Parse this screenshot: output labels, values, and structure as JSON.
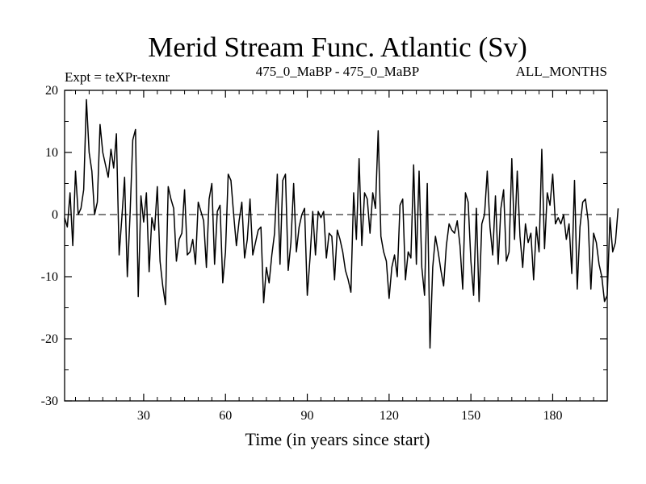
{
  "chart_data": {
    "type": "line",
    "title": "Merid Stream Func. Atlantic (Sv)",
    "subtitle_left": "Expt = teXPr-texnr",
    "subtitle_center": "475_0_MaBP - 475_0_MaBP",
    "subtitle_right": "ALL_MONTHS",
    "xlabel": "Time (in years since start)",
    "ylabel": "",
    "xlim": [
      1,
      200
    ],
    "ylim": [
      -30,
      20
    ],
    "x_ticks": [
      30,
      60,
      90,
      120,
      150,
      180
    ],
    "y_ticks": [
      20,
      10,
      0,
      -10,
      -20,
      -30
    ],
    "reference_line": {
      "y": 0,
      "style": "dashed"
    },
    "series": [
      {
        "x_start": 1,
        "x_step": 1,
        "values": [
          -0.5,
          -2,
          3.5,
          -5,
          7,
          0,
          1,
          4,
          18.5,
          10,
          7,
          0,
          2,
          14.5,
          10,
          8,
          6,
          10.5,
          7.5,
          13,
          -6.5,
          -0.5,
          6,
          -10,
          0,
          12,
          13.7,
          -13.2,
          3,
          -1.2,
          3.5,
          -9.2,
          -0.5,
          -2.5,
          4.5,
          -7.5,
          -11.5,
          -14.5,
          4.5,
          2.5,
          1,
          -7.5,
          -4,
          -3,
          4,
          -6.5,
          -6,
          -4,
          -8,
          2,
          0.5,
          -1,
          -8.5,
          2.5,
          5,
          -8,
          0.5,
          1.5,
          -11,
          -6,
          6.5,
          5.5,
          0,
          -5,
          -1,
          2,
          -7,
          -4,
          2.5,
          -6.5,
          -4.5,
          -2.5,
          -2,
          -14.2,
          -8.5,
          -11,
          -6.5,
          -3,
          6.5,
          -8,
          5.5,
          6.5,
          -9,
          -4.5,
          5,
          -6,
          -2,
          0,
          1,
          -13,
          -7,
          0.5,
          -6.5,
          0.5,
          -0.5,
          0.5,
          -7,
          -3,
          -3.5,
          -10.5,
          -2.5,
          -4,
          -6,
          -9,
          -10.5,
          -12.5,
          3.5,
          -4,
          9,
          -5,
          3.5,
          2.5,
          -3,
          3.5,
          1,
          13.5,
          -3.5,
          -6,
          -7.5,
          -13.5,
          -8.5,
          -6.5,
          -10,
          1.5,
          2.5,
          -10.5,
          -6,
          -7,
          8,
          -8,
          7,
          -8.5,
          -13,
          5,
          -21.5,
          -8.5,
          -3.5,
          -6,
          -9,
          -11.5,
          -5,
          -1.5,
          -2.5,
          -3,
          -1,
          -5,
          -12,
          3.5,
          2,
          -7.5,
          -13,
          1,
          -14,
          -1.5,
          0,
          7,
          -2,
          -6.5,
          3,
          -8,
          1,
          4,
          -7.5,
          -6,
          9,
          -4,
          7,
          -3.5,
          -8.5,
          -1.5,
          -4.5,
          -3,
          -10.5,
          -2,
          -6,
          10.5,
          -5.5,
          3.5,
          1.5,
          6.5,
          -1.5,
          -0.5,
          -1.5,
          0,
          -4,
          -1.5,
          -9.5,
          5.5,
          -12,
          -2,
          2,
          2.5,
          -1,
          -12,
          -3,
          -4.5,
          -8,
          -10,
          -14,
          -13,
          -0.5,
          -6,
          -4.5,
          1
        ]
      }
    ]
  }
}
